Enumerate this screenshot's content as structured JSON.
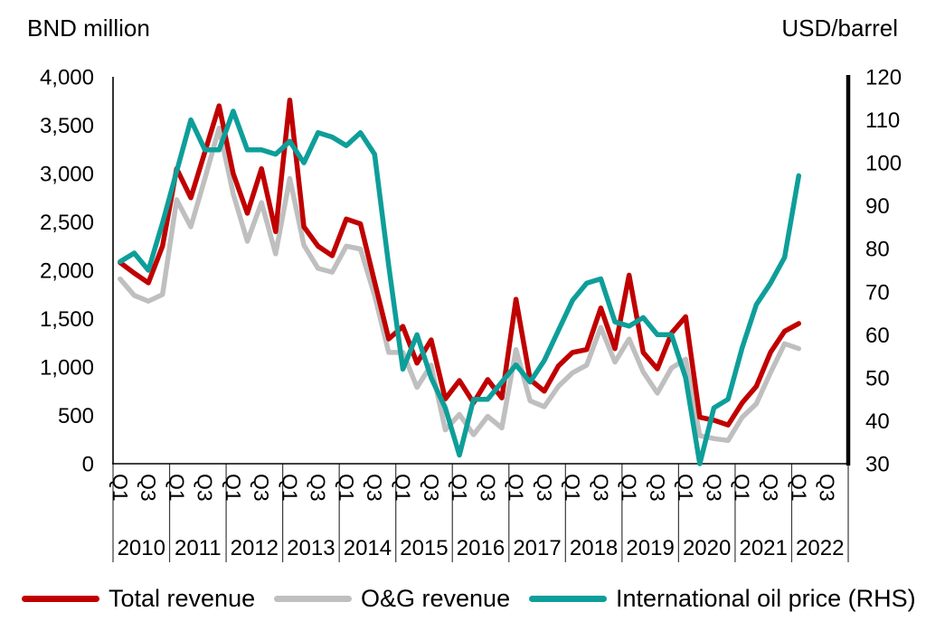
{
  "chart_data": {
    "type": "line",
    "title_left": "BND million",
    "title_right": "USD/barrel",
    "years": [
      "2010",
      "2011",
      "2012",
      "2013",
      "2014",
      "2015",
      "2016",
      "2017",
      "2018",
      "2019",
      "2020",
      "2021",
      "2022"
    ],
    "quarter_tick_labels": [
      "Q1",
      "Q3"
    ],
    "quarters_per_year": 4,
    "grid": false,
    "legend_position": "bottom",
    "left_axis": {
      "min": 0,
      "max": 4000,
      "tick_step": 500,
      "tick_labels": [
        "0",
        "500",
        "1,000",
        "1,500",
        "2,000",
        "2,500",
        "3,000",
        "3,500",
        "4,000"
      ]
    },
    "right_axis": {
      "min": 30,
      "max": 120,
      "tick_step": 10,
      "tick_labels": [
        "30",
        "40",
        "50",
        "60",
        "70",
        "80",
        "90",
        "100",
        "110",
        "120"
      ]
    },
    "x_start": "2010 Q1",
    "x_end": "2022 Q1",
    "draw_order": [
      1,
      0,
      2
    ],
    "series": [
      {
        "name": "Total revenue",
        "axis": "left",
        "color": "#C00000",
        "values": [
          2080,
          1970,
          1870,
          2250,
          3050,
          2750,
          3225,
          3700,
          3000,
          2590,
          3050,
          2400,
          3760,
          2450,
          2250,
          2150,
          2530,
          2480,
          1880,
          1290,
          1420,
          1040,
          1280,
          670,
          860,
          630,
          870,
          680,
          1700,
          870,
          750,
          1010,
          1150,
          1180,
          1610,
          1190,
          1950,
          1150,
          980,
          1350,
          1520,
          480,
          450,
          400,
          630,
          800,
          1150,
          1370,
          1450
        ]
      },
      {
        "name": "O&G revenue",
        "axis": "left",
        "color": "#BFBFBF",
        "values": [
          1910,
          1740,
          1680,
          1750,
          2730,
          2450,
          2950,
          3470,
          2790,
          2300,
          2700,
          2170,
          2950,
          2260,
          2020,
          1980,
          2250,
          2220,
          1740,
          1150,
          1150,
          790,
          1020,
          350,
          510,
          300,
          490,
          370,
          1180,
          650,
          590,
          800,
          940,
          1020,
          1410,
          1050,
          1290,
          950,
          730,
          990,
          1080,
          290,
          260,
          240,
          480,
          620,
          940,
          1240,
          1190
        ]
      },
      {
        "name": "International oil price (RHS)",
        "axis": "right",
        "color": "#0E9E99",
        "values": [
          77,
          79,
          75,
          86,
          98,
          110,
          103,
          103,
          112,
          103,
          103,
          102,
          105,
          100,
          107,
          106,
          104,
          107,
          102,
          76,
          52,
          60,
          50,
          43,
          32,
          45,
          45,
          49,
          53,
          49,
          54,
          61,
          68,
          72,
          73,
          63,
          62,
          64,
          60,
          60,
          50,
          30,
          43,
          45,
          57,
          67,
          72,
          78,
          97
        ]
      }
    ]
  }
}
